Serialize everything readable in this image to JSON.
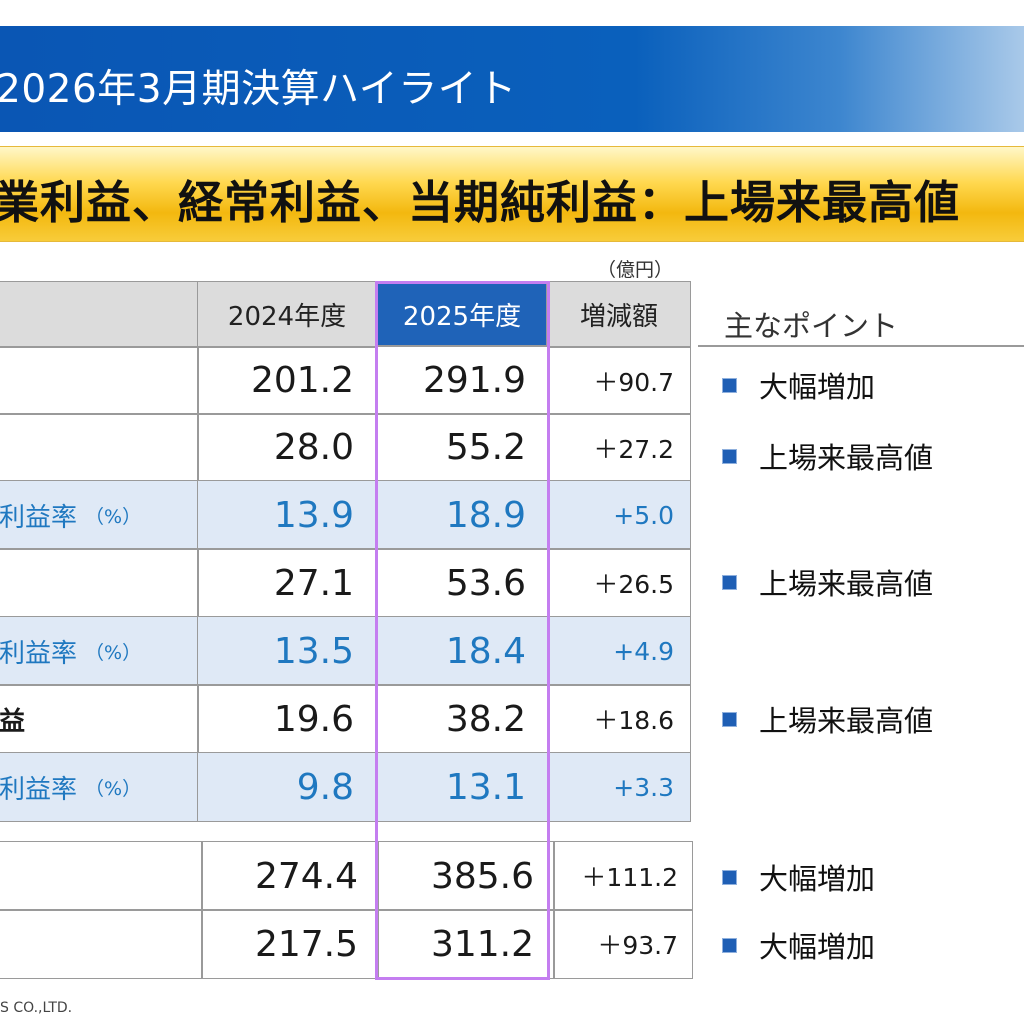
{
  "title": "2026年3月期決算ハイライト",
  "banner": "業利益、経常利益、当期純利益：上場来最高値",
  "unit": "（億円）",
  "headers": {
    "label": "",
    "prev": "2024年度",
    "curr": "2025年度",
    "diff": "増減額"
  },
  "rows": [
    {
      "label": "",
      "pct": "",
      "prev": "201.2",
      "curr": "291.9",
      "diff": "＋90.7"
    },
    {
      "label": "",
      "pct": "",
      "prev": "28.0",
      "curr": "55.2",
      "diff": "＋27.2"
    },
    {
      "label": "利益率",
      "pct": "（%）",
      "prev": "13.9",
      "curr": "18.9",
      "diff": "+5.0"
    },
    {
      "label": "",
      "pct": "",
      "prev": "27.1",
      "curr": "53.6",
      "diff": "＋26.5"
    },
    {
      "label": "利益率",
      "pct": "（%）",
      "prev": "13.5",
      "curr": "18.4",
      "diff": "+4.9"
    },
    {
      "label": "益",
      "pct": "",
      "prev": "19.6",
      "curr": "38.2",
      "diff": "＋18.6"
    },
    {
      "label": "利益率",
      "pct": "（%）",
      "prev": "9.8",
      "curr": "13.1",
      "diff": "+3.3"
    },
    {
      "label": "",
      "pct": "",
      "prev": "274.4",
      "curr": "385.6",
      "diff": "＋111.2"
    },
    {
      "label": "",
      "pct": "",
      "prev": "217.5",
      "curr": "311.2",
      "diff": "＋93.7"
    }
  ],
  "points": {
    "header": "主なポイント",
    "items": [
      "大幅増加",
      "上場来最高値",
      "上場来最高値",
      "上場来最高値",
      "大幅増加",
      "大幅増加"
    ]
  },
  "footer": "S CO.,LTD.",
  "colors": {
    "title_bg": "#0a56b4",
    "banner": "#ffd84f",
    "highlight": "#c47ef0",
    "blue_text": "#1f78c0"
  }
}
